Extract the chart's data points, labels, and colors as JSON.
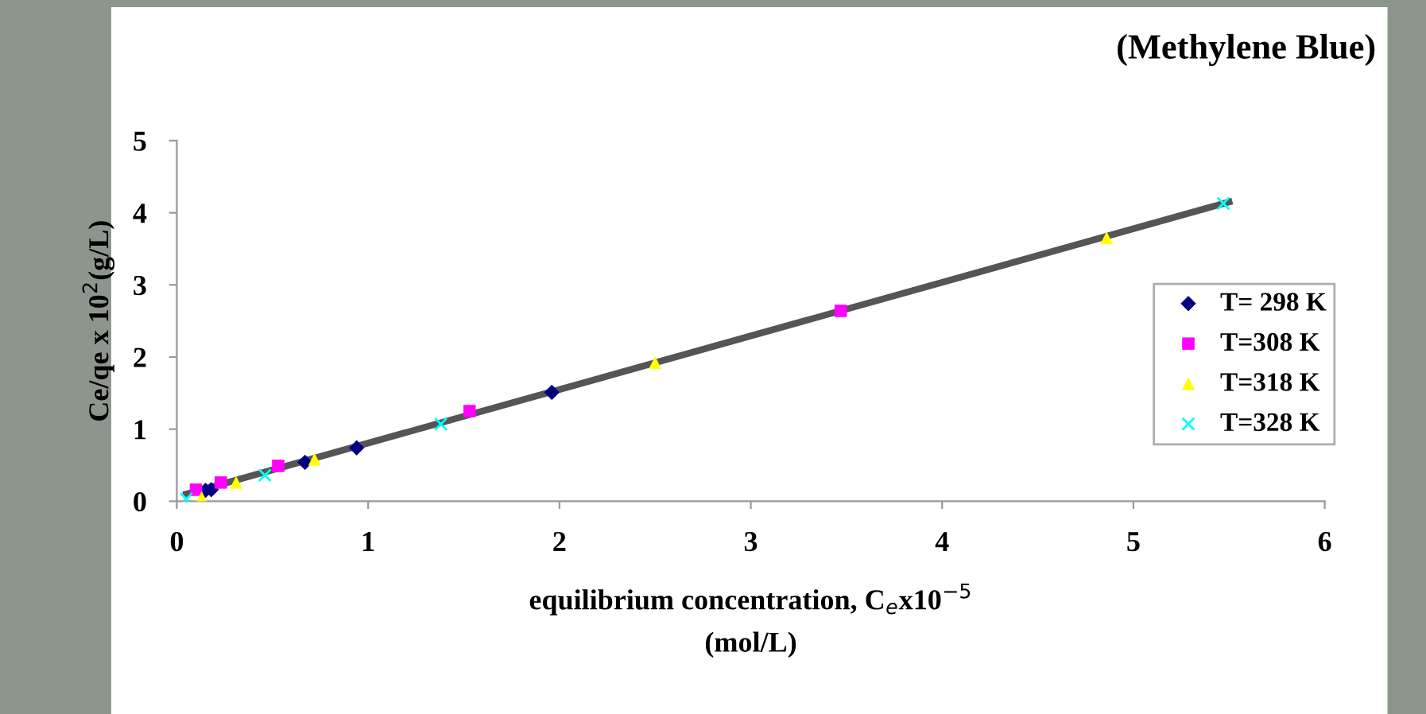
{
  "chart_data": {
    "type": "scatter",
    "title": "(Methylene Blue)",
    "xlabel": "equilibrium concentration, C$_{e}$x10$^{−5}$\n(mol/L)",
    "ylabel": "Ce/qe x 10$^{2}$(g/L)",
    "xlim": [
      0,
      6
    ],
    "ylim": [
      0,
      5
    ],
    "xticks": [
      0,
      1,
      2,
      3,
      4,
      5,
      6
    ],
    "yticks": [
      0,
      1,
      2,
      3,
      4,
      5
    ],
    "grid": false,
    "legend": "right",
    "series": [
      {
        "type": "line",
        "color": "#555555",
        "marker": "none",
        "line_style": "solid",
        "x": [
          0.05,
          5.5
        ],
        "values": [
          0.1,
          4.15
        ]
      },
      {
        "name": "T= 298 K",
        "color": "#000080",
        "marker": "diamond",
        "x": [
          0.15,
          0.18,
          0.67,
          0.94,
          1.96
        ],
        "values": [
          0.15,
          0.16,
          0.54,
          0.74,
          1.51
        ]
      },
      {
        "name": "T=308 K",
        "color": "#ff00ff",
        "marker": "square",
        "x": [
          0.1,
          0.23,
          0.53,
          1.53,
          3.47
        ],
        "values": [
          0.16,
          0.26,
          0.49,
          1.25,
          2.64
        ]
      },
      {
        "name": "T=318 K",
        "color": "#ffff00",
        "marker": "triangle",
        "x": [
          0.13,
          0.31,
          0.72,
          2.5,
          4.86
        ],
        "values": [
          0.05,
          0.26,
          0.58,
          1.92,
          3.65
        ]
      },
      {
        "name": "T=328 K",
        "color": "#00ffff",
        "marker": "cross",
        "x": [
          0.05,
          0.46,
          1.38,
          5.47
        ],
        "values": [
          0.03,
          0.36,
          1.07,
          4.13
        ]
      }
    ]
  }
}
